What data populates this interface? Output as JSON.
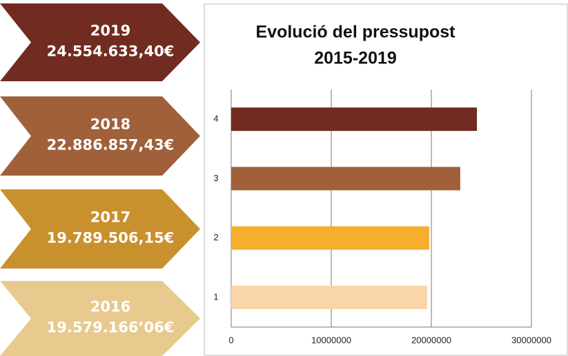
{
  "panels": [
    {
      "year": "2019",
      "amount": "24.554.633,40€",
      "color": "#722b20"
    },
    {
      "year": "2018",
      "amount": "22.886.857,43€",
      "color": "#a0603a"
    },
    {
      "year": "2017",
      "amount": "19.789.506,15€",
      "color": "#c9902e"
    },
    {
      "year": "2016",
      "amount": "19.579.166’06€",
      "color": "#e8c98e"
    }
  ],
  "chart_data": {
    "type": "bar",
    "orientation": "horizontal",
    "title": "Evolució del pressupost",
    "subtitle": "2015-2019",
    "categories": [
      "1",
      "2",
      "3",
      "4"
    ],
    "values": [
      19579166.06,
      19789506.15,
      22886857.43,
      24554633.4
    ],
    "colors": [
      "#f9d5a8",
      "#f5ae2e",
      "#a0603a",
      "#722b20"
    ],
    "xlim": [
      0,
      30000000
    ],
    "xticks": [
      0,
      10000000,
      20000000,
      30000000
    ],
    "grid": true
  }
}
